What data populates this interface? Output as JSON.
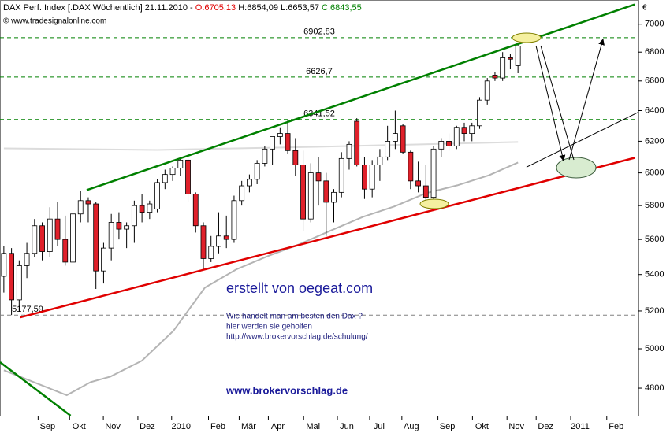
{
  "chart_data": {
    "type": "candlestick",
    "title": "DAX Perf. Index [.DAX Wöchentlich] 21.11.2010 -",
    "ohlc_labels": [
      {
        "text": "O:6705,13",
        "color": "#e00000"
      },
      {
        "text": "H:6854,09 L:6653,57",
        "color": "#000000"
      },
      {
        "text": "C:6843,55",
        "color": "#008000"
      }
    ],
    "source": "© www.tradesignalonline.com",
    "currency": "€",
    "log_scale": true,
    "ylim": [
      4665,
      7160
    ],
    "yticks": [
      4800,
      5000,
      5200,
      5400,
      5600,
      5800,
      6000,
      6200,
      6400,
      6600,
      6800,
      7000
    ],
    "xlim": [
      -0.5,
      82.7
    ],
    "xticks": [
      {
        "value": 5.7,
        "label": "Sep"
      },
      {
        "value": 9.8,
        "label": "Okt"
      },
      {
        "value": 14.2,
        "label": "Nov"
      },
      {
        "value": 18.7,
        "label": "Dez"
      },
      {
        "value": 23.1,
        "label": "2010"
      },
      {
        "value": 27.9,
        "label": "Feb"
      },
      {
        "value": 31.9,
        "label": "Mär"
      },
      {
        "value": 35.7,
        "label": "Apr"
      },
      {
        "value": 40.3,
        "label": "Mai"
      },
      {
        "value": 44.7,
        "label": "Jun"
      },
      {
        "value": 48.9,
        "label": "Jul"
      },
      {
        "value": 53.1,
        "label": "Aug"
      },
      {
        "value": 57.8,
        "label": "Sep"
      },
      {
        "value": 62.3,
        "label": "Okt"
      },
      {
        "value": 66.8,
        "label": "Nov"
      },
      {
        "value": 70.6,
        "label": "Dez"
      },
      {
        "value": 75.1,
        "label": "2011"
      },
      {
        "value": 79.8,
        "label": "Feb"
      }
    ],
    "up_color": "#ffffff",
    "down_color": "#e0202a",
    "candles": {
      "x": [
        0,
        1,
        2,
        3,
        4,
        5,
        6,
        7,
        8,
        9,
        10,
        11,
        12,
        13,
        14,
        15,
        16,
        17,
        18,
        19,
        20,
        21,
        22,
        23,
        24,
        25,
        26,
        27,
        28,
        29,
        30,
        31,
        32,
        33,
        34,
        35,
        36,
        37,
        38,
        39,
        40,
        41,
        42,
        43,
        44,
        45,
        46,
        47,
        48,
        49,
        50,
        51,
        52,
        53,
        54,
        55,
        56,
        57,
        58,
        59,
        60,
        61,
        62,
        63,
        64,
        65,
        66,
        67
      ],
      "open": [
        5390,
        5520,
        5260,
        5450,
        5520,
        5680,
        5530,
        5720,
        5600,
        5470,
        5750,
        5830,
        5810,
        5420,
        5550,
        5700,
        5660,
        5680,
        5800,
        5760,
        5780,
        5940,
        5990,
        6030,
        6080,
        5870,
        5680,
        5490,
        5560,
        5620,
        5600,
        5830,
        5920,
        5960,
        6060,
        6150,
        6230,
        6250,
        6140,
        6050,
        5720,
        6000,
        5950,
        5820,
        5880,
        6090,
        6330,
        6050,
        5900,
        6050,
        6100,
        6200,
        6300,
        6130,
        5950,
        5920,
        5850,
        6150,
        6200,
        6170,
        6290,
        6250,
        6300,
        6470,
        6640,
        6620,
        6760,
        6705
      ],
      "high": [
        5560,
        5550,
        5480,
        5580,
        5720,
        5700,
        5790,
        5820,
        5740,
        5780,
        5890,
        5850,
        5820,
        5580,
        5750,
        5760,
        5700,
        5830,
        5870,
        5830,
        5960,
        6020,
        6040,
        6100,
        6090,
        5880,
        5700,
        5620,
        5760,
        5740,
        5860,
        5950,
        5990,
        6080,
        6170,
        6230,
        6290,
        6340,
        6220,
        6140,
        6060,
        6100,
        6000,
        5900,
        6130,
        6200,
        6350,
        6100,
        6080,
        6150,
        6300,
        6400,
        6310,
        6140,
        6070,
        6050,
        6170,
        6220,
        6250,
        6300,
        6320,
        6320,
        6490,
        6620,
        6660,
        6800,
        6790,
        6854
      ],
      "low": [
        5300,
        5178,
        5200,
        5380,
        5500,
        5480,
        5500,
        5560,
        5450,
        5420,
        5700,
        5700,
        5320,
        5350,
        5480,
        5600,
        5550,
        5580,
        5700,
        5720,
        5760,
        5900,
        5950,
        5980,
        5820,
        5640,
        5430,
        5470,
        5520,
        5550,
        5580,
        5800,
        5880,
        5930,
        6040,
        6050,
        6180,
        6120,
        5980,
        5650,
        5700,
        5800,
        5620,
        5700,
        5850,
        6020,
        6040,
        5840,
        5850,
        5950,
        6080,
        6150,
        6120,
        5900,
        5880,
        5820,
        5820,
        6100,
        6140,
        6150,
        6200,
        6200,
        6280,
        6440,
        6600,
        6600,
        6680,
        6653
      ],
      "close": [
        5520,
        5260,
        5450,
        5520,
        5680,
        5530,
        5720,
        5600,
        5470,
        5750,
        5830,
        5810,
        5420,
        5550,
        5700,
        5660,
        5680,
        5800,
        5760,
        5810,
        5940,
        5990,
        6030,
        6080,
        5870,
        5680,
        5490,
        5560,
        5620,
        5600,
        5830,
        5920,
        5960,
        6060,
        6150,
        6230,
        6250,
        6140,
        6050,
        5720,
        6000,
        5950,
        5820,
        5880,
        6090,
        6180,
        6050,
        5900,
        6050,
        6100,
        6200,
        6250,
        6130,
        5950,
        5920,
        5850,
        6150,
        6200,
        6170,
        6290,
        6250,
        6300,
        6470,
        6600,
        6620,
        6760,
        6750,
        6843
      ]
    },
    "series": [
      {
        "color": "#b4b4b4",
        "x": [
          0,
          8.2,
          11.3,
          13.9,
          18,
          22.1,
          26.2,
          30.3,
          34.4,
          38.5,
          42.7,
          46.8,
          50.9,
          55,
          59.1,
          63.2,
          67
        ],
        "values": [
          4890,
          4765,
          4830,
          4858,
          4939,
          5094,
          5327,
          5429,
          5504,
          5572,
          5654,
          5733,
          5795,
          5875,
          5923,
          5985,
          6065
        ]
      },
      {
        "color": "#dcdcdc",
        "x": [
          0,
          20,
          40.6,
          67
        ],
        "values": [
          6154,
          6144,
          6164,
          6195
        ]
      }
    ],
    "trendlines": [
      {
        "color": "#008000",
        "x": [
          10.8,
          82.2
        ],
        "values": [
          5894,
          7144
        ]
      },
      {
        "color": "#e00000",
        "x": [
          2.1,
          82.2
        ],
        "values": [
          5165,
          6094
        ]
      },
      {
        "color": "#008000",
        "x": [
          -0.5,
          8.7
        ],
        "values": [
          4931,
          4665
        ]
      },
      {
        "color": "#000000",
        "x": [
          68.1,
          82.7
        ],
        "values": [
          6036,
          6390
        ]
      }
    ],
    "levels": [
      {
        "value": 6902.83,
        "label": "6902,83",
        "color": "#008000"
      },
      {
        "value": 6626.7,
        "label": "6626,7",
        "color": "#008000"
      },
      {
        "value": 6341.52,
        "label": "6341,52",
        "color": "#008000"
      },
      {
        "value": 5177.59,
        "label": "5177,59",
        "color": "#808080"
      }
    ]
  },
  "annotations": {
    "credit": "erstellt von oegeat.com",
    "lines": [
      "Wie handelt man am besten  den Dax ?",
      "hier werden sie geholfen",
      "http://www.brokervorschlag.de/schulung/"
    ],
    "link": "www.brokervorschlag.de"
  }
}
